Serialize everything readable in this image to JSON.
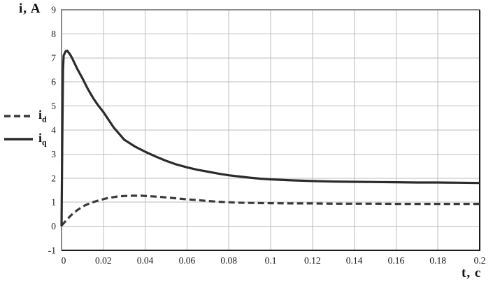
{
  "chart_data": {
    "type": "line",
    "ylabel": "i, A",
    "xlabel": "t, c",
    "xlim": [
      0,
      0.2
    ],
    "ylim": [
      -1,
      9
    ],
    "grid": true,
    "legend_position": "left-outside",
    "xticks": {
      "values": [
        0,
        0.02,
        0.04,
        0.06,
        0.08,
        0.1,
        0.12,
        0.14,
        0.16,
        0.18,
        0.2
      ],
      "labels": [
        "0",
        "0.02",
        "0.04",
        "0.06",
        "0.08",
        "0.1",
        "0.12",
        "0.14",
        "0.16",
        "0.18",
        "0.2"
      ]
    },
    "yticks": {
      "values": [
        9,
        8,
        7,
        6,
        5,
        4,
        3,
        2,
        1,
        0,
        -1
      ],
      "labels": [
        "9",
        "8",
        "7",
        "6",
        "5",
        "4",
        "3",
        "2",
        "1",
        "0",
        "-1"
      ]
    },
    "colors": {
      "id_line": "#3a3a3a",
      "iq_line": "#2b2b2b",
      "grid": "#bdbdbd",
      "border_light": "#8c8c8c",
      "border_dark": "#1a1a1a",
      "background": "#ffffff"
    },
    "series": [
      {
        "name": "id",
        "label_base": "i",
        "label_sub": "d",
        "style": "dashed",
        "dash": "9 5",
        "color_key": "id_line",
        "x": [
          0,
          0.002,
          0.004,
          0.006,
          0.008,
          0.01,
          0.012,
          0.015,
          0.018,
          0.021,
          0.024,
          0.027,
          0.03,
          0.034,
          0.038,
          0.042,
          0.046,
          0.05,
          0.055,
          0.06,
          0.065,
          0.07,
          0.075,
          0.08,
          0.085,
          0.09,
          0.1,
          0.11,
          0.12,
          0.13,
          0.14,
          0.15,
          0.16,
          0.17,
          0.18,
          0.19,
          0.2
        ],
        "y": [
          0.03,
          0.22,
          0.41,
          0.57,
          0.7,
          0.81,
          0.9,
          1.0,
          1.08,
          1.15,
          1.2,
          1.24,
          1.26,
          1.27,
          1.27,
          1.25,
          1.23,
          1.2,
          1.16,
          1.12,
          1.09,
          1.05,
          1.02,
          1.0,
          0.98,
          0.97,
          0.96,
          0.95,
          0.95,
          0.94,
          0.94,
          0.94,
          0.93,
          0.93,
          0.93,
          0.93,
          0.93
        ]
      },
      {
        "name": "iq",
        "label_base": "i",
        "label_sub": "q",
        "style": "solid",
        "dash": "",
        "color_key": "iq_line",
        "x": [
          0,
          0.0004,
          0.0007,
          0.001,
          0.002,
          0.0027,
          0.004,
          0.005,
          0.0075,
          0.01,
          0.0125,
          0.015,
          0.0175,
          0.02,
          0.025,
          0.03,
          0.035,
          0.04,
          0.045,
          0.05,
          0.055,
          0.06,
          0.065,
          0.07,
          0.075,
          0.08,
          0.085,
          0.09,
          0.095,
          0.1,
          0.11,
          0.12,
          0.13,
          0.14,
          0.15,
          0.16,
          0.17,
          0.18,
          0.19,
          0.2
        ],
        "y": [
          0,
          4.0,
          6.5,
          7.1,
          7.28,
          7.3,
          7.15,
          7.0,
          6.55,
          6.15,
          5.72,
          5.35,
          5.03,
          4.75,
          4.1,
          3.6,
          3.32,
          3.1,
          2.9,
          2.72,
          2.57,
          2.45,
          2.35,
          2.27,
          2.19,
          2.12,
          2.07,
          2.02,
          1.98,
          1.95,
          1.91,
          1.88,
          1.86,
          1.85,
          1.84,
          1.83,
          1.82,
          1.82,
          1.81,
          1.8
        ]
      }
    ]
  }
}
